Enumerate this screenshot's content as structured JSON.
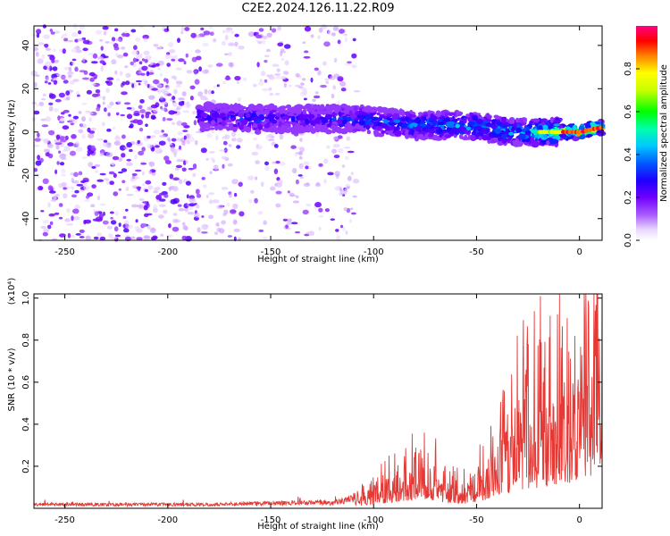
{
  "title": "C2E2.2024.126.11.22.R09",
  "chart_data": [
    {
      "type": "heatmap",
      "xlabel": "Height of straight line (km)",
      "ylabel": "Frequency (Hz)",
      "xlim": [
        -265,
        11
      ],
      "ylim": [
        -50,
        49
      ],
      "xticks": [
        "-250",
        "-200",
        "-150",
        "-100",
        "-50",
        "0"
      ],
      "yticks": [
        "-40",
        "-20",
        "0",
        "20",
        "40"
      ],
      "colorbar": {
        "label": "Normalized spectral amplitude",
        "range": [
          0,
          1
        ],
        "ticks": [
          "0.0",
          "0.2",
          "0.4",
          "0.6",
          "0.8"
        ],
        "colors": [
          "#ffffff",
          "#e6d2ff",
          "#9a3cff",
          "#6a00ff",
          "#1b00ff",
          "#0040ff",
          "#00c8ff",
          "#00ffb0",
          "#00ff00",
          "#c8ff00",
          "#ffff00",
          "#ff8000",
          "#ff0000",
          "#ff0080"
        ]
      },
      "ridge": [
        {
          "x": -180,
          "y": 7,
          "amp": 0.3
        },
        {
          "x": -160,
          "y": 6,
          "amp": 0.35
        },
        {
          "x": -140,
          "y": 6,
          "amp": 0.25
        },
        {
          "x": -110,
          "y": 6,
          "amp": 0.35
        },
        {
          "x": -80,
          "y": 3,
          "amp": 0.4
        },
        {
          "x": -55,
          "y": 3,
          "amp": 0.45
        },
        {
          "x": -30,
          "y": 0,
          "amp": 0.45
        },
        {
          "x": -15,
          "y": 0,
          "amp": 0.55
        },
        {
          "x": 0,
          "y": 0,
          "amp": 0.9
        },
        {
          "x": 10,
          "y": 2,
          "amp": 0.85
        }
      ]
    },
    {
      "type": "line",
      "xlabel": "Height of straight line (km)",
      "ylabel": "SNR (10 * v/v)",
      "yscale_label": "(x10⁴)",
      "xlim": [
        -265,
        11
      ],
      "ylim": [
        0,
        1.02
      ],
      "xticks": [
        "-250",
        "-200",
        "-150",
        "-100",
        "-50",
        "0"
      ],
      "yticks": [
        "0.2",
        "0.4",
        "0.6",
        "0.8",
        "1.0"
      ],
      "color": "#e53935",
      "envelope": [
        {
          "x": -265,
          "y": 0.02
        },
        {
          "x": -180,
          "y": 0.02
        },
        {
          "x": -160,
          "y": 0.025
        },
        {
          "x": -120,
          "y": 0.03
        },
        {
          "x": -105,
          "y": 0.06
        },
        {
          "x": -95,
          "y": 0.12
        },
        {
          "x": -75,
          "y": 0.2
        },
        {
          "x": -65,
          "y": 0.12
        },
        {
          "x": -55,
          "y": 0.1
        },
        {
          "x": -45,
          "y": 0.2
        },
        {
          "x": -35,
          "y": 0.35
        },
        {
          "x": -25,
          "y": 0.45
        },
        {
          "x": -10,
          "y": 0.55
        },
        {
          "x": 0,
          "y": 0.65
        },
        {
          "x": 8,
          "y": 0.8
        }
      ]
    }
  ]
}
